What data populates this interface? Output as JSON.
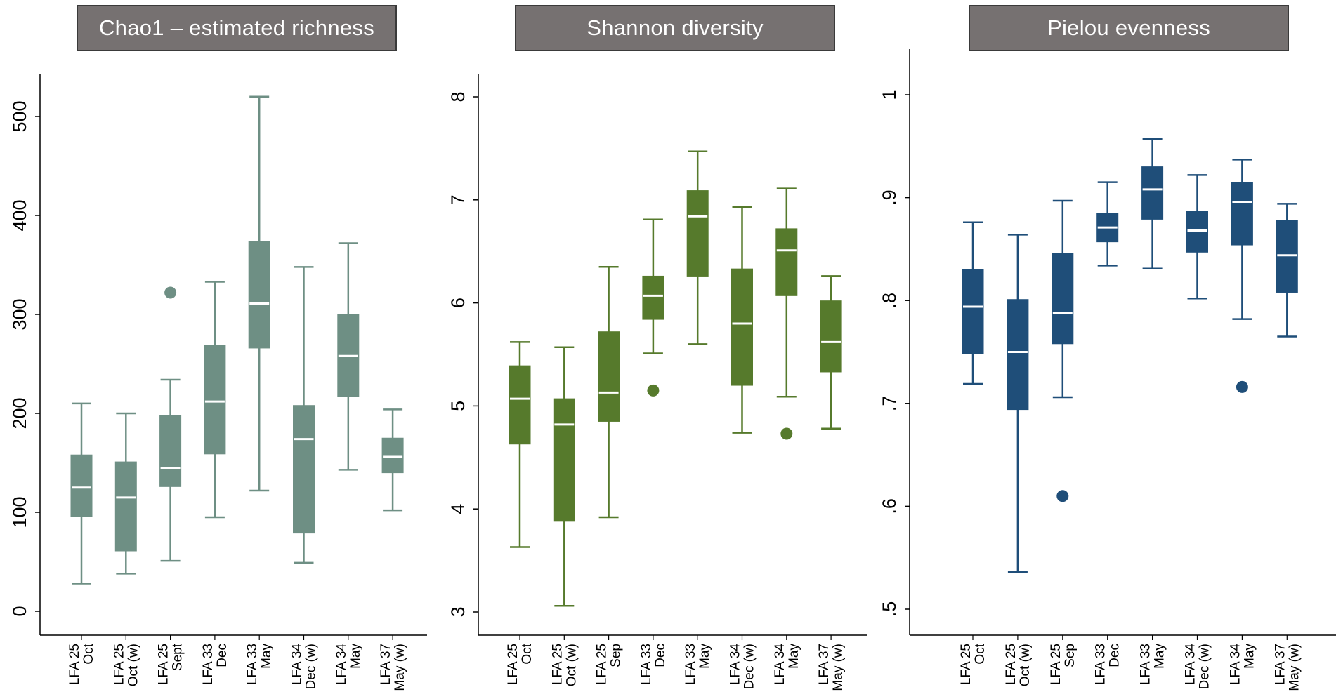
{
  "chart_data": [
    {
      "type": "box",
      "title": "Chao1 – estimated richness",
      "color": "#6e8f84",
      "median_color": "#ffffff",
      "ylim": [
        0,
        540
      ],
      "yticks": [
        0,
        100,
        200,
        300,
        400,
        500
      ],
      "ytick_labels": [
        "0",
        "100",
        "200",
        "300",
        "400",
        "500"
      ],
      "categories": [
        [
          "LFA 25",
          "Oct"
        ],
        [
          "LFA 25",
          "Oct (w)"
        ],
        [
          "LFA 25",
          "Sept"
        ],
        [
          "LFA 33",
          "Dec"
        ],
        [
          "LFA 33",
          "May"
        ],
        [
          "LFA 34",
          "Dec (w)"
        ],
        [
          "LFA 34",
          "May"
        ],
        [
          "LFA 37",
          "May (w)"
        ]
      ],
      "boxes": [
        {
          "min": 28,
          "q1": 96,
          "median": 125,
          "q3": 158,
          "max": 210,
          "outliers": []
        },
        {
          "min": 38,
          "q1": 61,
          "median": 115,
          "q3": 151,
          "max": 200,
          "outliers": []
        },
        {
          "min": 51,
          "q1": 126,
          "median": 145,
          "q3": 198,
          "max": 234,
          "outliers": [
            322
          ]
        },
        {
          "min": 95,
          "q1": 159,
          "median": 212,
          "q3": 269,
          "max": 333,
          "outliers": []
        },
        {
          "min": 122,
          "q1": 266,
          "median": 311,
          "q3": 374,
          "max": 520,
          "outliers": []
        },
        {
          "min": 49,
          "q1": 79,
          "median": 174,
          "q3": 208,
          "max": 348,
          "outliers": []
        },
        {
          "min": 143,
          "q1": 217,
          "median": 258,
          "q3": 300,
          "max": 372,
          "outliers": []
        },
        {
          "min": 102,
          "q1": 140,
          "median": 156,
          "q3": 175,
          "max": 204,
          "outliers": []
        }
      ]
    },
    {
      "type": "box",
      "title": "Shannon diversity",
      "color": "#567a2c",
      "median_color": "#ffffff",
      "ylim": [
        2.95,
        8.1
      ],
      "yticks": [
        3,
        4,
        5,
        6,
        7,
        8
      ],
      "ytick_labels": [
        "3",
        "4",
        "5",
        "6",
        "7",
        "8"
      ],
      "categories": [
        [
          "LFA 25",
          "Oct"
        ],
        [
          "LFA 25",
          "Oct (w)"
        ],
        [
          "LFA 25",
          "Sep"
        ],
        [
          "LFA 33",
          "Dec"
        ],
        [
          "LFA 33",
          "May"
        ],
        [
          "LFA 34",
          "Dec (w)"
        ],
        [
          "LFA 34",
          "May"
        ],
        [
          "LFA 37",
          "May (w)"
        ]
      ],
      "boxes": [
        {
          "min": 3.63,
          "q1": 4.63,
          "median": 5.07,
          "q3": 5.39,
          "max": 5.62,
          "outliers": []
        },
        {
          "min": 3.06,
          "q1": 3.88,
          "median": 4.82,
          "q3": 5.07,
          "max": 5.57,
          "outliers": []
        },
        {
          "min": 3.92,
          "q1": 4.85,
          "median": 5.13,
          "q3": 5.72,
          "max": 6.35,
          "outliers": []
        },
        {
          "min": 5.51,
          "q1": 5.84,
          "median": 6.07,
          "q3": 6.26,
          "max": 6.81,
          "outliers": [
            5.15
          ]
        },
        {
          "min": 5.6,
          "q1": 6.26,
          "median": 6.84,
          "q3": 7.09,
          "max": 7.47,
          "outliers": []
        },
        {
          "min": 4.74,
          "q1": 5.2,
          "median": 5.8,
          "q3": 6.33,
          "max": 6.93,
          "outliers": []
        },
        {
          "min": 5.09,
          "q1": 6.07,
          "median": 6.51,
          "q3": 6.72,
          "max": 7.11,
          "outliers": [
            4.73
          ]
        },
        {
          "min": 4.78,
          "q1": 5.33,
          "median": 5.62,
          "q3": 6.02,
          "max": 6.26,
          "outliers": []
        }
      ]
    },
    {
      "type": "box",
      "title": "Pielou evenness",
      "color": "#1f4e79",
      "median_color": "#ffffff",
      "ylim": [
        0.48,
        1.02
      ],
      "yticks": [
        0.5,
        0.6,
        0.7,
        0.8,
        0.9,
        1.0
      ],
      "ytick_labels": [
        ".5",
        ".6",
        ".7",
        ".8",
        ".9",
        "1"
      ],
      "categories": [
        [
          "LFA 25",
          "Oct"
        ],
        [
          "LFA 25",
          "Oct (w)"
        ],
        [
          "LFA 25",
          "Sep"
        ],
        [
          "LFA 33",
          "Dec"
        ],
        [
          "LFA 33",
          "May"
        ],
        [
          "LFA 34",
          "Dec (w)"
        ],
        [
          "LFA 34",
          "May"
        ],
        [
          "LFA 37",
          "May (w)"
        ]
      ],
      "boxes": [
        {
          "min": 0.719,
          "q1": 0.748,
          "median": 0.794,
          "q3": 0.83,
          "max": 0.876,
          "outliers": []
        },
        {
          "min": 0.536,
          "q1": 0.694,
          "median": 0.75,
          "q3": 0.801,
          "max": 0.864,
          "outliers": []
        },
        {
          "min": 0.706,
          "q1": 0.758,
          "median": 0.788,
          "q3": 0.846,
          "max": 0.897,
          "outliers": [
            0.61
          ]
        },
        {
          "min": 0.834,
          "q1": 0.857,
          "median": 0.871,
          "q3": 0.885,
          "max": 0.915,
          "outliers": []
        },
        {
          "min": 0.831,
          "q1": 0.879,
          "median": 0.908,
          "q3": 0.93,
          "max": 0.957,
          "outliers": []
        },
        {
          "min": 0.802,
          "q1": 0.847,
          "median": 0.868,
          "q3": 0.887,
          "max": 0.922,
          "outliers": []
        },
        {
          "min": 0.782,
          "q1": 0.854,
          "median": 0.896,
          "q3": 0.915,
          "max": 0.937,
          "outliers": [
            0.716
          ]
        },
        {
          "min": 0.765,
          "q1": 0.808,
          "median": 0.844,
          "q3": 0.878,
          "max": 0.894,
          "outliers": []
        }
      ]
    }
  ]
}
